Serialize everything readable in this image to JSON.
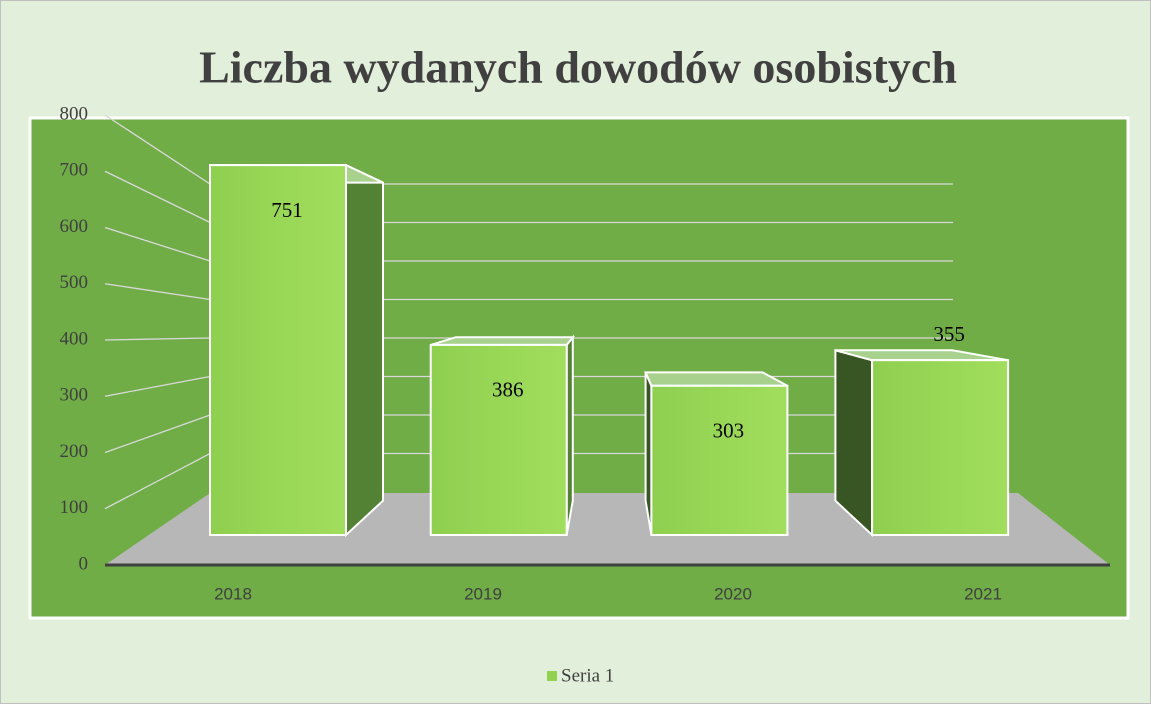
{
  "chart_data": {
    "type": "bar3d",
    "title": "Liczba wydanych dowodów osobistych",
    "categories": [
      "2018",
      "2019",
      "2020",
      "2021"
    ],
    "series": [
      {
        "name": "Seria 1",
        "color": "#92d050",
        "values": [
          751,
          386,
          303,
          355
        ]
      }
    ],
    "ylim": [
      0,
      800
    ],
    "yticks": [
      0,
      100,
      200,
      300,
      400,
      500,
      600,
      700,
      800
    ],
    "grid": true,
    "legend": "bottom"
  }
}
